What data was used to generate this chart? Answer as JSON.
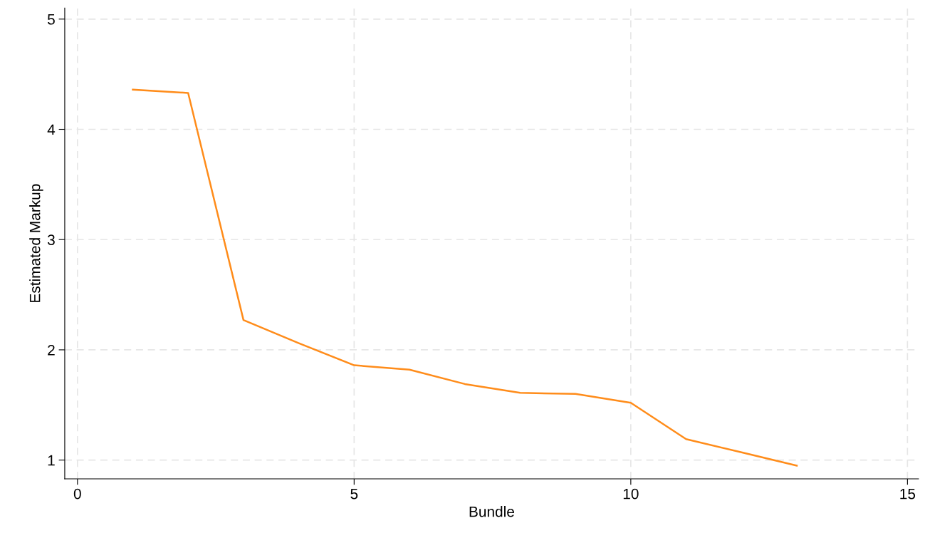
{
  "chart_data": {
    "type": "line",
    "xlabel": "Bundle",
    "ylabel": "Estimated Markup",
    "x": [
      1,
      2,
      3,
      4,
      5,
      6,
      7,
      8,
      9,
      10,
      11,
      12,
      13
    ],
    "series": [
      {
        "color": "#ff8c1a",
        "values": [
          4.36,
          4.33,
          2.27,
          2.06,
          1.86,
          1.82,
          1.69,
          1.61,
          1.6,
          1.52,
          1.19,
          1.07,
          0.95
        ]
      }
    ],
    "xlim": [
      -0.23,
      15.2
    ],
    "ylim": [
      0.83,
      5.1
    ],
    "xticks": [
      0,
      5,
      10,
      15
    ],
    "yticks": [
      1,
      2,
      3,
      4,
      5
    ],
    "grid": true,
    "marker": "none",
    "line_style": "solid"
  }
}
